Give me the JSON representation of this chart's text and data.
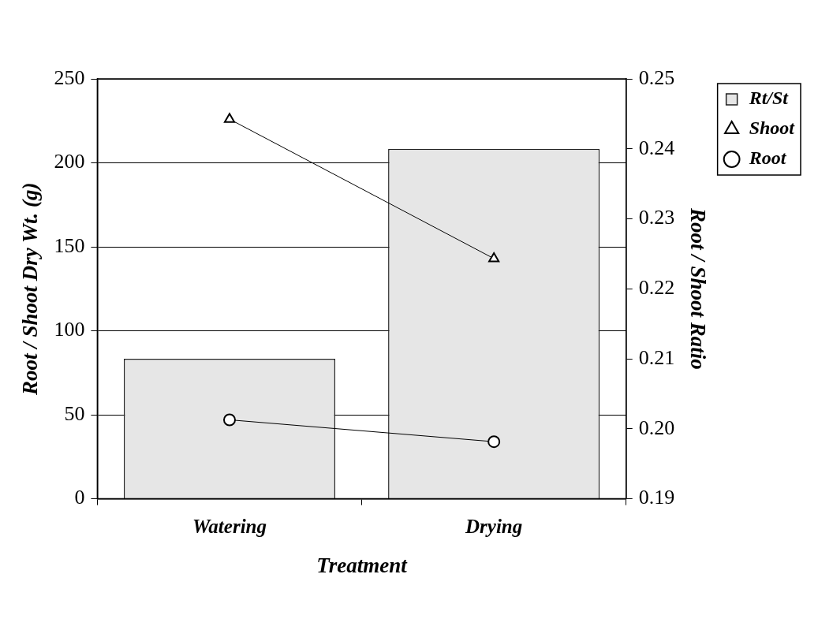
{
  "chart_data": {
    "type": "bar",
    "xlabel": "Treatment",
    "ylabel": "Root / Shoot Dry Wt. (g)",
    "y2label": "Root / Shoot Ratio",
    "categories": [
      "Watering",
      "Drying"
    ],
    "series": [
      {
        "name": "Rt/St",
        "axis": "y2",
        "color": "#e6e6e6",
        "values": [
          0.21,
          0.24
        ]
      },
      {
        "name": "Shoot",
        "type": "line",
        "axis": "y",
        "color": "#000000",
        "marker": "triangle",
        "values": [
          226,
          143
        ]
      },
      {
        "name": "Root",
        "type": "line",
        "axis": "y",
        "color": "#000000",
        "marker": "circle",
        "values": [
          47,
          34
        ]
      }
    ],
    "ylim": [
      0,
      250
    ],
    "yticks": [
      0,
      50,
      100,
      150,
      200,
      250
    ],
    "y2lim": [
      0.19,
      0.25
    ],
    "y2ticks": [
      0.19,
      {
        "value": 0.2,
        "label": "0.20"
      },
      0.21,
      0.22,
      0.23,
      0.24,
      0.25
    ],
    "grid": "y",
    "legend": "top right",
    "line_style": "solid"
  }
}
